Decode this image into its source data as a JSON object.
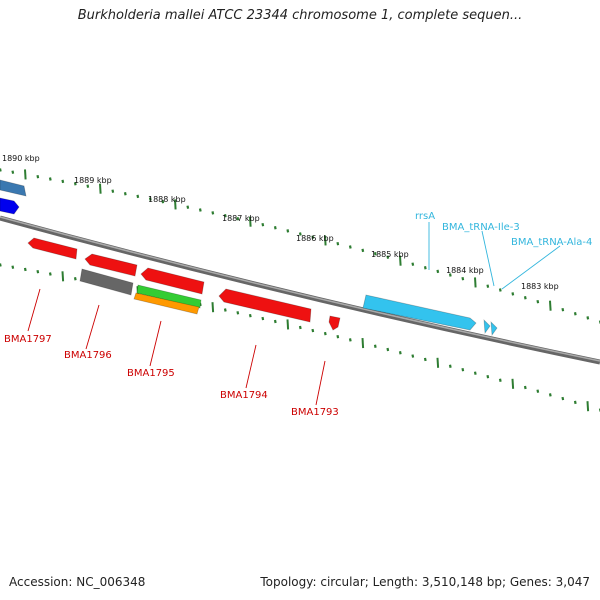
{
  "title": "Burkholderia mallei ATCC 23344 chromosome 1, complete sequen...",
  "accession": "Accession: NC_006348",
  "topology": "Topology: circular; Length: 3,510,148 bp; Genes: 3,047",
  "colors": {
    "backbone": "#777777",
    "tick": "#2e7d32",
    "gene_red": "#ee1111",
    "gene_gray": "#666666",
    "gene_green": "#33cc33",
    "gene_orange": "#ff9900",
    "rna_cyan": "#33c3ee",
    "gene_blue": "#0000ee",
    "gene_steel": "#3a78b0",
    "label_red": "#cc0000",
    "label_cyan": "#33b6dd"
  },
  "kbp_ticks": [
    "1890 kbp",
    "1889 kbp",
    "1888 kbp",
    "1887 kbp",
    "1886 kbp",
    "1885 kbp",
    "1884 kbp",
    "1883 kbp"
  ],
  "genes": [
    "BMA1797",
    "BMA1796",
    "BMA1795",
    "BMA1794",
    "BMA1793"
  ],
  "rnas": [
    "rrsA",
    "BMA_tRNA-Ile-3",
    "BMA_tRNA-Ala-4"
  ]
}
